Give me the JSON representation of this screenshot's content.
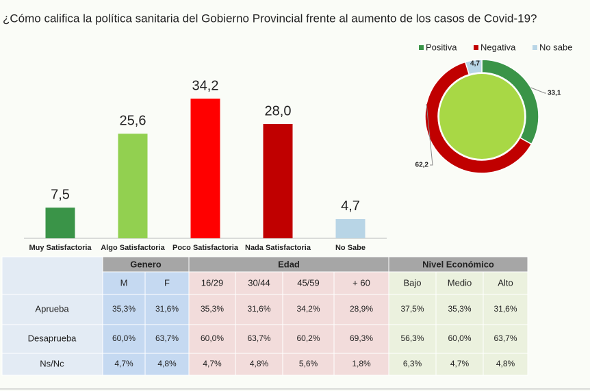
{
  "chart_data": [
    {
      "type": "bar",
      "title": "¿Cómo califica la política sanitaria del Gobierno Provincial frente al aumento de los casos de Covid-19?",
      "categories": [
        "Muy Satisfactoria",
        "Algo Satisfactoria",
        "Poco Satisfactoria",
        "Nada Satisfactoria",
        "No Sabe"
      ],
      "values": [
        7.5,
        25.6,
        34.2,
        28.0,
        4.7
      ],
      "value_labels": [
        "7,5",
        "25,6",
        "34,2",
        "28,0",
        "4,7"
      ],
      "colors": [
        "#3a9448",
        "#92d050",
        "#ff0000",
        "#c00000",
        "#b8d5e6"
      ]
    },
    {
      "type": "pie",
      "categories": [
        "Positiva",
        "Negativa",
        "No sabe"
      ],
      "values": [
        33.1,
        62.2,
        4.7
      ],
      "value_labels": [
        "33,1",
        "62,2",
        "4,7"
      ],
      "colors": [
        "#3a9448",
        "#c00000",
        "#b8d5e6"
      ],
      "legend": "top"
    }
  ],
  "table": {
    "groups": [
      {
        "label": "Genero",
        "columns": [
          "M",
          "F"
        ]
      },
      {
        "label": "Edad",
        "columns": [
          "16/29",
          "30/44",
          "45/59",
          "+ 60"
        ]
      },
      {
        "label": "Nivel Económico",
        "columns": [
          "Bajo",
          "Medio",
          "Alto"
        ]
      }
    ],
    "rows": [
      {
        "label": "Aprueba",
        "cells": [
          "35,3%",
          "31,6%",
          "35,3%",
          "31,6%",
          "34,2%",
          "28,9%",
          "37,5%",
          "35,3%",
          "31,6%"
        ]
      },
      {
        "label": "Desaprueba",
        "cells": [
          "60,0%",
          "63,7%",
          "60,0%",
          "63,7%",
          "60,2%",
          "69,3%",
          "56,3%",
          "60,0%",
          "63,7%"
        ]
      },
      {
        "label": "Ns/Nc",
        "cells": [
          "4,7%",
          "4,8%",
          "4,7%",
          "4,8%",
          "5,6%",
          "1,8%",
          "6,3%",
          "4,7%",
          "4,8%"
        ]
      }
    ]
  }
}
